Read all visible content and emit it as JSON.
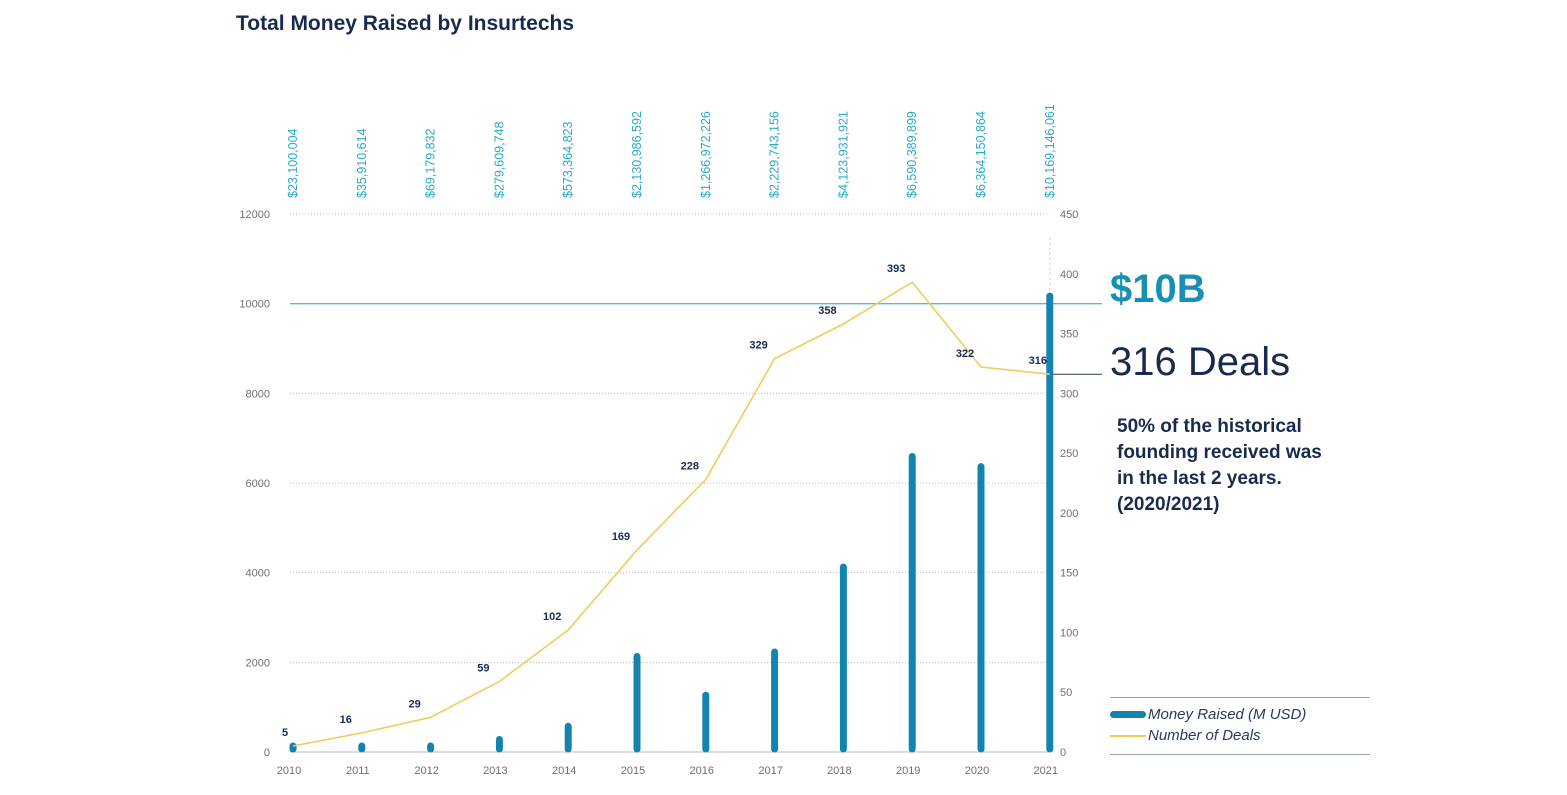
{
  "chart_data": {
    "type": "bar+line",
    "title": "Total Money Raised by Insurtechs",
    "categories": [
      "2010",
      "2011",
      "2012",
      "2013",
      "2014",
      "2015",
      "2016",
      "2017",
      "2018",
      "2019",
      "2020",
      "2021"
    ],
    "series": [
      {
        "name": "Money Raised (M USD)",
        "type": "bar",
        "axis": "left",
        "values": [
          23.1,
          35.9,
          69.2,
          279.6,
          573.4,
          2131.0,
          1267.0,
          2229.7,
          4123.9,
          6590.4,
          6364.2,
          10169.1
        ]
      },
      {
        "name": "Number of Deals",
        "type": "line",
        "axis": "right",
        "values": [
          5,
          16,
          29,
          59,
          102,
          169,
          228,
          329,
          358,
          393,
          322,
          316
        ]
      }
    ],
    "amount_labels": [
      "$23,100,004",
      "$35,910,614",
      "$69,179,832",
      "$279,609,748",
      "$573,364,823",
      "$2,130,986,592",
      "$1,266,972,226",
      "$2,229,743,156",
      "$4,123,931,921",
      "$6,590,389,899",
      "$6,364,150,864",
      "$10,169,146,061"
    ],
    "left_axis": {
      "ticks": [
        "0",
        "2000",
        "4000",
        "6000",
        "8000",
        "10000",
        "12000"
      ],
      "range": [
        0,
        12000
      ]
    },
    "right_axis": {
      "ticks": [
        "0",
        "50",
        "100",
        "150",
        "200",
        "250",
        "300",
        "350",
        "400",
        "450"
      ],
      "range": [
        0,
        450
      ]
    },
    "reference_line_value": 10000,
    "colors": {
      "bar": "#1284ad",
      "line": "#f5c95b",
      "amount_text": "#2aaac8",
      "reference": "#5ab8d6",
      "title": "#1a2a4f"
    }
  },
  "annotations": {
    "big_amount": "$10B",
    "big_deals": "316 Deals",
    "note_lines": [
      "50% of the historical",
      "founding received was",
      "in the last 2 years.",
      "(2020/2021)"
    ]
  },
  "legend": {
    "bar_label": "Money Raised (M USD)",
    "line_label": "Number of Deals"
  }
}
